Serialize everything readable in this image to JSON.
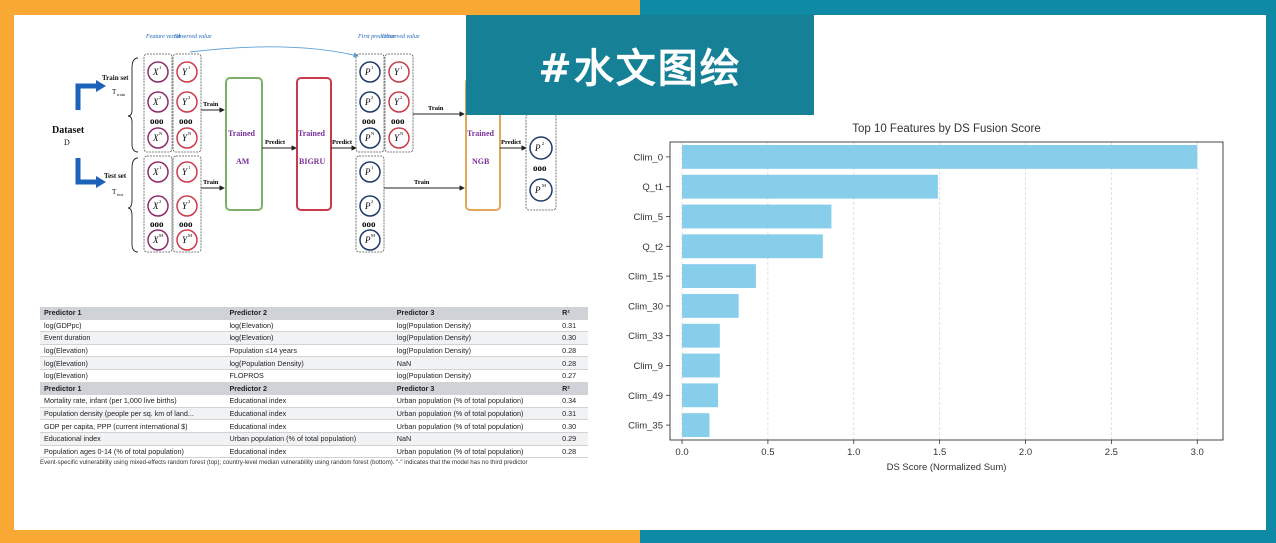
{
  "banner": {
    "title": "#水文图绘"
  },
  "diagram": {
    "dataset_label": "Dataset",
    "dataset_sub": "D",
    "train_set_label": "Train set",
    "train_set_sub": "T",
    "test_set_label": "Test set",
    "test_set_sub": "T",
    "feature_header": "Feature vector",
    "observed_header": "Observed value",
    "first_prediction_header": "First prediction",
    "observed_header_2": "Observed value",
    "model_am_title": "Trained",
    "model_am_name": "AM",
    "model_bigru_title": "Trained",
    "model_bigru_name": "BIGRU",
    "model_ngb_title": "Trained",
    "model_ngb_name": "NGB",
    "arrow_train": "Train",
    "arrow_predict": "Predict",
    "train_set_sub_small": "train",
    "test_set_sub_small": "test",
    "x_symbol": "X",
    "y_symbol": "Y",
    "p_symbol": "P",
    "p_sub_train": "train",
    "p_sub_test": "test",
    "sup_1": "1",
    "sup_2": "2",
    "sup_n": "N",
    "sup_m": "M",
    "test2_sub": "test.2"
  },
  "table": {
    "header1": [
      "Predictor 1",
      "Predictor 2",
      "Predictor 3",
      "R²"
    ],
    "rows1": [
      [
        "log(GDPpc)",
        "log(Elevation)",
        "log(Population Density)",
        "0.31"
      ],
      [
        "Event duration",
        "log(Elevation)",
        "log(Population Density)",
        "0.30"
      ],
      [
        "log(Elevation)",
        "Population ≤14 years",
        "log(Population Density)",
        "0.28"
      ],
      [
        "log(Elevation)",
        "log(Population Density)",
        "NaN",
        "0.28"
      ],
      [
        "log(Elevation)",
        "FLOPROS",
        "log(Population Density)",
        "0.27"
      ]
    ],
    "header2": [
      "Predictor 1",
      "Predictor 2",
      "Predictor 3",
      "R²"
    ],
    "rows2": [
      [
        "Mortality rate, infant (per 1,000 live births)",
        "Educational index",
        "Urban population (% of total population)",
        "0.34"
      ],
      [
        "Population density (people per sq. km of land...",
        "Educational index",
        "Urban population (% of total population)",
        "0.31"
      ],
      [
        "GDP per capita, PPP (current international $)",
        "Educational index",
        "Urban population (% of total population)",
        "0.30"
      ],
      [
        "Educational index",
        "Urban population (% of total population)",
        "NaN",
        "0.29"
      ],
      [
        "Population ages 0-14 (% of total population)",
        "Educational index",
        "Urban population (% of total population)",
        "0.28"
      ]
    ],
    "caption": "Event-specific vulnerability using mixed-effects random forest (top); country-level median vulnerability using random forest (bottom). \"-\" indicates that the model has no third predictor"
  },
  "chart_data": {
    "type": "bar",
    "orientation": "horizontal",
    "title": "Top 10 Features by DS Fusion Score",
    "xlabel": "DS Score (Normalized Sum)",
    "ylabel": "",
    "categories": [
      "Clim_0",
      "Q_t1",
      "Clim_5",
      "Q_t2",
      "Clim_15",
      "Clim_30",
      "Clim_33",
      "Clim_9",
      "Clim_49",
      "Clim_35"
    ],
    "values": [
      3.0,
      1.49,
      0.87,
      0.82,
      0.43,
      0.33,
      0.22,
      0.22,
      0.21,
      0.16
    ],
    "xlim": [
      -0.07,
      3.15
    ],
    "xticks": [
      "0.0",
      "0.5",
      "1.0",
      "1.5",
      "2.0",
      "2.5",
      "3.0"
    ],
    "xtick_values": [
      0,
      0.5,
      1.0,
      1.5,
      2.0,
      2.5,
      3.0
    ],
    "grid": "x",
    "bar_color": "#87ceeb"
  },
  "colors": {
    "left_bg": "#f7a934",
    "right_bg": "#0f8aa5",
    "banner_bg": "#168196",
    "am_border": "#7fae6a",
    "bigru_border": "#c93b4a",
    "ngb_border": "#e0a85a",
    "model_text": "#7a2f9a",
    "arrow_blue": "#1b63b8"
  }
}
